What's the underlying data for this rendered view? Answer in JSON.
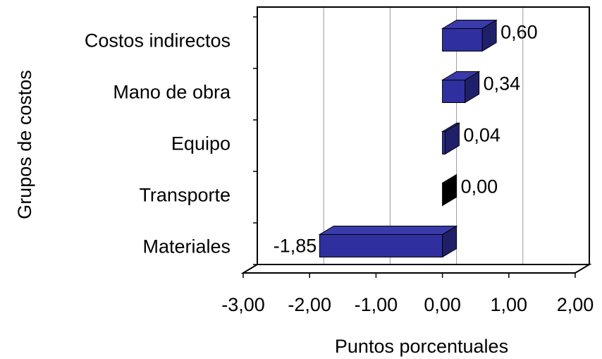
{
  "chart_data": {
    "type": "bar",
    "orientation": "horizontal",
    "style": "3d",
    "categories": [
      "Costos indirectos",
      "Mano de obra",
      "Equipo",
      "Transporte",
      "Materiales"
    ],
    "values": [
      0.6,
      0.34,
      0.04,
      0.0,
      -1.85
    ],
    "value_labels": [
      "0,60",
      "0,34",
      "0,04",
      "0,00",
      "-1,85"
    ],
    "xlabel": "Puntos porcentuales",
    "ylabel": "Grupos de costos",
    "xlim": [
      -3,
      2
    ],
    "x_ticks": [
      -3,
      -2,
      -1,
      0,
      1,
      2
    ],
    "x_tick_labels": [
      "-3,00",
      "-2,00",
      "-1,00",
      "0,00",
      "1,00",
      "2,00"
    ],
    "grid": "vertical",
    "legend": "none",
    "colors": {
      "bar_front": "#2f2f9f",
      "bar_top": "#3a3aaa",
      "bar_side": "#20206a",
      "zero_bar": "#000000",
      "grid": "#9a9a9a",
      "axis": "#000000"
    }
  }
}
